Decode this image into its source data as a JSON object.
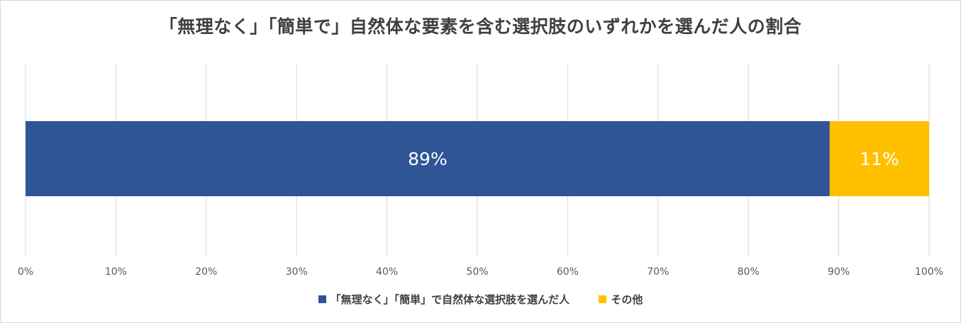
{
  "chart_data": {
    "type": "bar",
    "orientation": "horizontal",
    "stacked": true,
    "percent_stacked": true,
    "title": "「無理なく」「簡単で」自然体な要素を含む選択肢のいずれかを選んだ人の割合",
    "xlim": [
      0,
      100
    ],
    "x_ticks": [
      "0%",
      "10%",
      "20%",
      "30%",
      "40%",
      "50%",
      "60%",
      "70%",
      "80%",
      "90%",
      "100%"
    ],
    "grid": true,
    "legend_position": "bottom",
    "series": [
      {
        "name": "「無理なく」「簡単」で自然体な選択肢を選んだ人",
        "value": 89,
        "label": "89%",
        "color": "#2f5597"
      },
      {
        "name": "その他",
        "value": 11,
        "label": "11%",
        "color": "#ffc000"
      }
    ]
  }
}
